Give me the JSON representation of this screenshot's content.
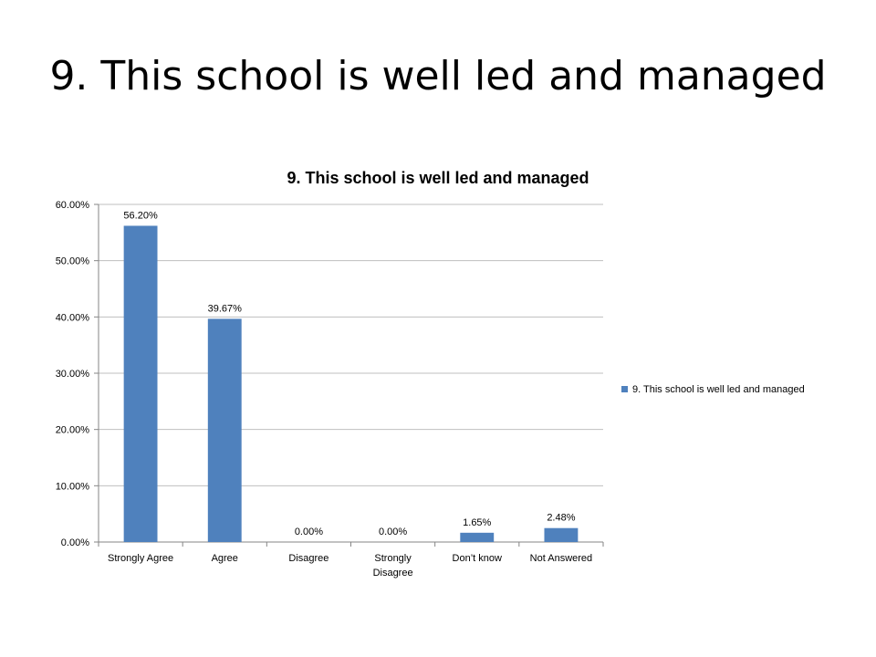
{
  "slide": {
    "title": "9. This school is well led and managed"
  },
  "chart_data": {
    "type": "bar",
    "title": "9. This school is well led and managed",
    "categories": [
      "Strongly Agree",
      "Agree",
      "Disagree",
      "Strongly Disagree",
      "Don’t know",
      "Not Answered"
    ],
    "series": [
      {
        "name": "9. This school is well led and managed",
        "values": [
          56.2,
          39.67,
          0.0,
          0.0,
          1.65,
          2.48
        ],
        "labels": [
          "56.20%",
          "39.67%",
          "0.00%",
          "0.00%",
          "1.65%",
          "2.48%"
        ],
        "color": "#4F81BD"
      }
    ],
    "ylim": [
      0,
      60
    ],
    "yticks": [
      0,
      10,
      20,
      30,
      40,
      50,
      60
    ],
    "ytick_labels": [
      "0.00%",
      "10.00%",
      "20.00%",
      "30.00%",
      "40.00%",
      "50.00%",
      "60.00%"
    ],
    "xlabel": "",
    "ylabel": "",
    "grid": true,
    "legend_position": "right"
  }
}
